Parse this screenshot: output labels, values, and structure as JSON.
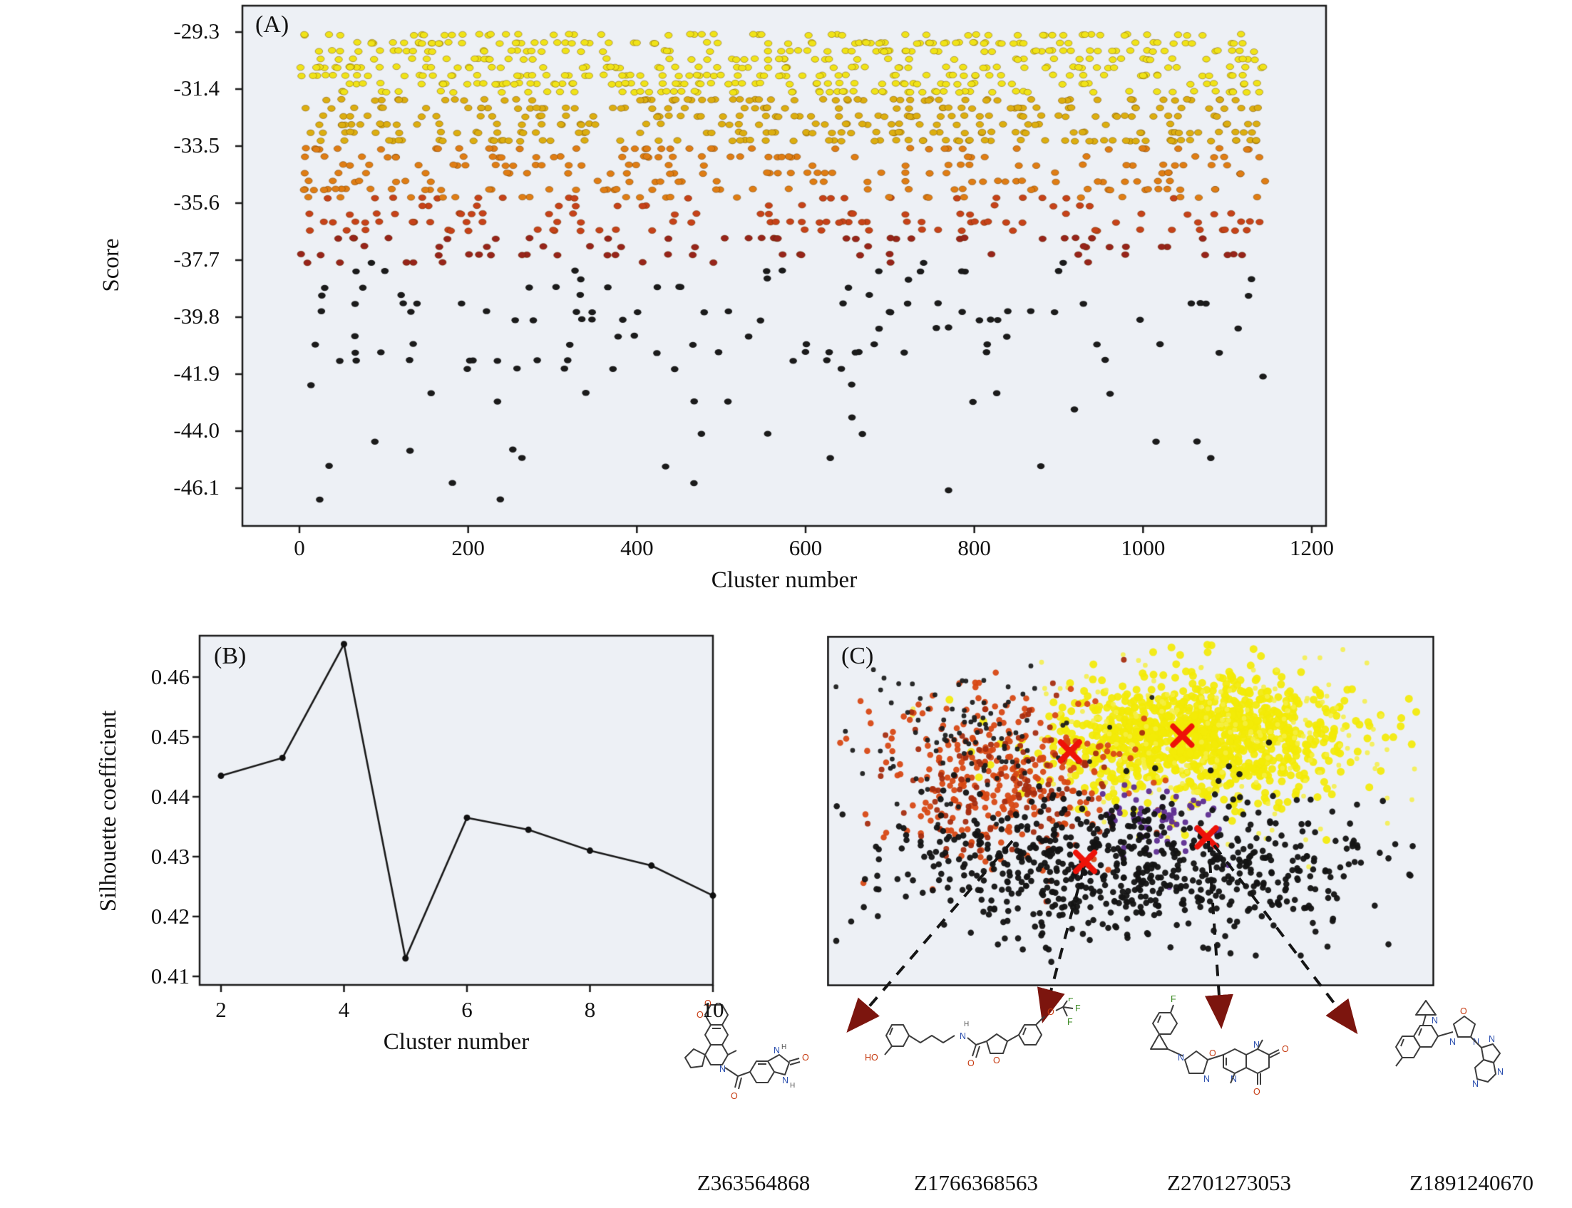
{
  "figure": {
    "panels": {
      "a": "(A)",
      "b": "(B)",
      "c": "(C)"
    }
  },
  "chart_data": [
    {
      "id": "panel-a",
      "type": "scatter",
      "xlabel": "Cluster number",
      "ylabel": "Score",
      "xticks": [
        0,
        200,
        400,
        600,
        800,
        1000,
        1200
      ],
      "yticks": [
        -29.3,
        -31.4,
        -33.5,
        -35.6,
        -37.7,
        -39.8,
        -41.9,
        -44.0,
        -46.1
      ],
      "xlim": [
        -68,
        1218
      ],
      "ylim": [
        -47.5,
        -28.3
      ],
      "x_data_range": [
        0,
        1145
      ],
      "n_points": 1450,
      "seed": 42,
      "row_quantum": 0.3,
      "bands": [
        {
          "weight": 0.34,
          "from": -29.3,
          "to": -31.5
        },
        {
          "weight": 0.27,
          "from": -31.5,
          "to": -33.5
        },
        {
          "weight": 0.17,
          "from": -33.5,
          "to": -35.5
        },
        {
          "weight": 0.115,
          "from": -35.5,
          "to": -37.6
        },
        {
          "weight": 0.078,
          "from": -37.6,
          "to": -41.6
        },
        {
          "weight": 0.027,
          "from": -41.6,
          "to": -46.8
        }
      ],
      "color_scale": [
        {
          "min": -31.6,
          "color": "#f0e318"
        },
        {
          "min": -33.5,
          "color": "#dcae10"
        },
        {
          "min": -35.4,
          "color": "#df7d14"
        },
        {
          "min": -36.7,
          "color": "#c64219"
        },
        {
          "min": -37.8,
          "color": "#97241a"
        },
        {
          "min": -99,
          "color": "#1b1b1b"
        }
      ]
    },
    {
      "id": "panel-b",
      "type": "line",
      "xlabel": "Cluster number",
      "ylabel": "Silhouette coefficient",
      "x": [
        2,
        3,
        4,
        5,
        6,
        7,
        8,
        9,
        10
      ],
      "y": [
        0.4435,
        0.4465,
        0.4655,
        0.413,
        0.4365,
        0.4345,
        0.431,
        0.4285,
        0.4235
      ],
      "xticks": [
        2,
        4,
        6,
        8,
        10
      ],
      "yticks": [
        0.41,
        0.42,
        0.43,
        0.44,
        0.45,
        0.46
      ],
      "xlim": [
        1.65,
        10.05
      ],
      "ylim": [
        0.4085,
        0.468
      ],
      "line_color": "#1a1a1a"
    },
    {
      "id": "panel-c",
      "type": "scatter",
      "seed": 7,
      "centroid_color": "#ee1208",
      "centroid_marker": "x",
      "clusters": [
        {
          "name": "yellow-core",
          "color": "#f3ea07",
          "cx": 0.615,
          "cy": 0.295,
          "sx": 0.115,
          "sy": 0.085,
          "n": 1050,
          "r": 5.5,
          "alpha": 0.92
        },
        {
          "name": "yellow-halo",
          "color": "#f5ee45",
          "cx": 0.63,
          "cy": 0.3,
          "sx": 0.165,
          "sy": 0.125,
          "n": 230,
          "r": 3.4,
          "alpha": 0.85
        },
        {
          "name": "orange-red",
          "color": "#d84814",
          "cx": 0.285,
          "cy": 0.4,
          "sx": 0.105,
          "sy": 0.115,
          "n": 300,
          "r": 4.3,
          "alpha": 0.95
        },
        {
          "name": "dark-red",
          "color": "#a62d10",
          "cx": 0.3,
          "cy": 0.42,
          "sx": 0.1,
          "sy": 0.11,
          "n": 130,
          "r": 4,
          "alpha": 0.95
        },
        {
          "name": "sparse-black-upper",
          "color": "#1d1d1d",
          "cx": 0.235,
          "cy": 0.3,
          "sx": 0.115,
          "sy": 0.105,
          "n": 110,
          "r": 3.4,
          "alpha": 0.95
        },
        {
          "name": "purple",
          "color": "#5e2c91",
          "cx": 0.545,
          "cy": 0.52,
          "sx": 0.045,
          "sy": 0.05,
          "n": 60,
          "r": 4,
          "alpha": 0.95
        },
        {
          "name": "black-main",
          "color": "#141414",
          "cx": 0.5,
          "cy": 0.665,
          "sx": 0.205,
          "sy": 0.105,
          "n": 720,
          "r": 4.3,
          "alpha": 0.96
        }
      ],
      "centroids": [
        {
          "x": 0.4,
          "y": 0.33
        },
        {
          "x": 0.585,
          "y": 0.285
        },
        {
          "x": 0.425,
          "y": 0.645
        },
        {
          "x": 0.625,
          "y": 0.575
        }
      ]
    }
  ],
  "compounds": [
    {
      "id": "Z363564868"
    },
    {
      "id": "Z1766368563"
    },
    {
      "id": "Z2701273053"
    },
    {
      "id": "Z1891240670"
    }
  ]
}
